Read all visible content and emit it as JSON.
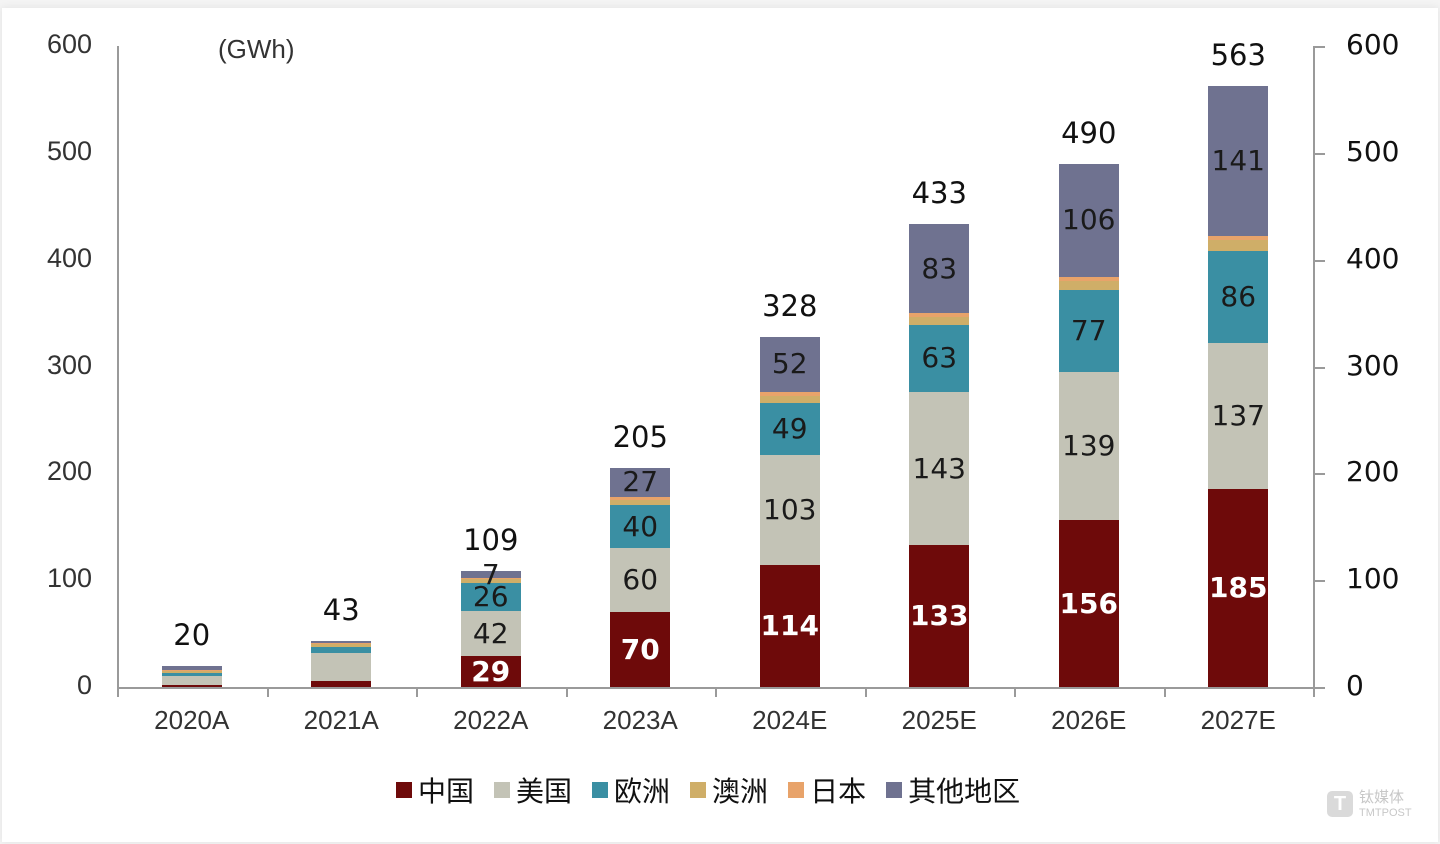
{
  "chart_data": {
    "type": "bar",
    "stacked": true,
    "title": "",
    "unit_label": "(GWh)",
    "xlabel": "",
    "ylabel": "GWh",
    "ylim": [
      0,
      600
    ],
    "yticks": [
      0,
      100,
      200,
      300,
      400,
      500,
      600
    ],
    "secondary_yticks": [
      0,
      100,
      200,
      300,
      400,
      500,
      600
    ],
    "grid": false,
    "legend_position": "bottom",
    "categories": [
      "2020A",
      "2021A",
      "2022A",
      "2023A",
      "2024E",
      "2025E",
      "2026E",
      "2027E"
    ],
    "series": [
      {
        "name": "中国",
        "color": "#6e0a0a",
        "values": [
          2,
          6,
          29,
          70,
          114,
          133,
          156,
          185
        ],
        "labels": [
          "",
          "",
          "29",
          "70",
          "114",
          "133",
          "156",
          "185"
        ]
      },
      {
        "name": "美国",
        "color": "#c3c3b6",
        "values": [
          8,
          26,
          42,
          60,
          103,
          143,
          139,
          137
        ],
        "labels": [
          "",
          "",
          "42",
          "60",
          "103",
          "143",
          "139",
          "137"
        ]
      },
      {
        "name": "欧洲",
        "color": "#3a8fa3",
        "values": [
          3,
          5,
          26,
          40,
          49,
          63,
          77,
          86
        ],
        "labels": [
          "",
          "",
          "26",
          "40",
          "49",
          "63",
          "77",
          "86"
        ]
      },
      {
        "name": "澳洲",
        "color": "#cfae68",
        "values": [
          2,
          3,
          4,
          5,
          6,
          7,
          8,
          10
        ],
        "labels": [
          "",
          "",
          "",
          "",
          "",
          "",
          "",
          ""
        ]
      },
      {
        "name": "日本",
        "color": "#e8a36a",
        "values": [
          1,
          1,
          1,
          3,
          4,
          4,
          4,
          4
        ],
        "labels": [
          "",
          "",
          "",
          "",
          "",
          "",
          "",
          ""
        ]
      },
      {
        "name": "其他地区",
        "color": "#6f7290",
        "values": [
          4,
          2,
          7,
          27,
          52,
          83,
          106,
          141
        ],
        "labels": [
          "",
          "",
          "7",
          "27",
          "52",
          "83",
          "106",
          "141"
        ]
      }
    ],
    "totals": [
      20,
      43,
      109,
      205,
      328,
      433,
      490,
      563
    ]
  },
  "axis": {
    "left_ticks": [
      "0",
      "100",
      "200",
      "300",
      "400",
      "500",
      "600"
    ],
    "right_ticks": [
      "0",
      "100",
      "200",
      "300",
      "400",
      "500",
      "600"
    ]
  },
  "watermark": {
    "cn": "钛媒体",
    "en": "TMTPOST",
    "logo": "T"
  }
}
